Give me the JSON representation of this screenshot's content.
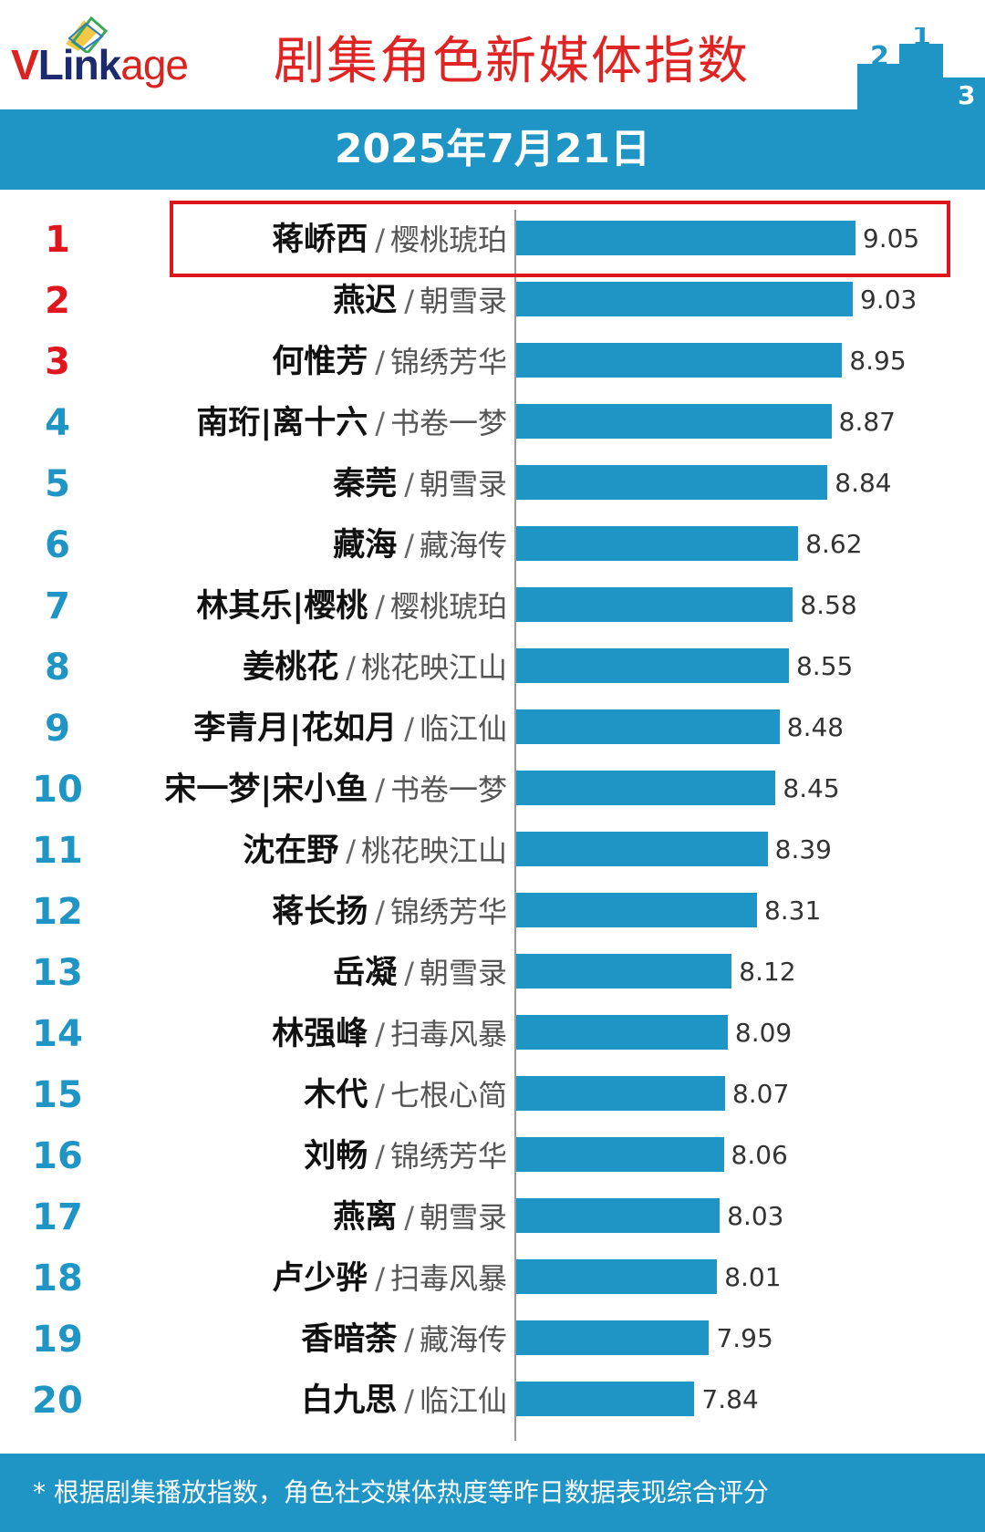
{
  "header": {
    "logo_v": "V",
    "logo_link": "Link",
    "logo_age": "age",
    "title": "剧集角色新媒体指数"
  },
  "date_bar": {
    "text": "2025年7月21日"
  },
  "footer": {
    "text": "* 根据剧集播放指数，角色社交媒体热度等昨日数据表现综合评分"
  },
  "colors": {
    "bar": "#1e95c4",
    "top_rank": "#e0161e",
    "rank": "#1e95c4",
    "highlight_border": "#e0161e"
  },
  "chart_data": {
    "type": "bar",
    "orientation": "horizontal",
    "title": "剧集角色新媒体指数",
    "subtitle": "2025年7月21日",
    "xlim": [
      6.5,
      9.75
    ],
    "highlighted_rank": 1,
    "rows": [
      {
        "rank": "1",
        "name": "蒋峤西",
        "drama": "樱桃琥珀",
        "value": 9.05
      },
      {
        "rank": "2",
        "name": "燕迟",
        "drama": "朝雪录",
        "value": 9.03
      },
      {
        "rank": "3",
        "name": "何惟芳",
        "drama": "锦绣芳华",
        "value": 8.95
      },
      {
        "rank": "4",
        "name": "南珩|离十六",
        "drama": "书卷一梦",
        "value": 8.87
      },
      {
        "rank": "5",
        "name": "秦莞",
        "drama": "朝雪录",
        "value": 8.84
      },
      {
        "rank": "6",
        "name": "藏海",
        "drama": "藏海传",
        "value": 8.62
      },
      {
        "rank": "7",
        "name": "林其乐|樱桃",
        "drama": "樱桃琥珀",
        "value": 8.58
      },
      {
        "rank": "8",
        "name": "姜桃花",
        "drama": "桃花映江山",
        "value": 8.55
      },
      {
        "rank": "9",
        "name": "李青月|花如月",
        "drama": "临江仙",
        "value": 8.48
      },
      {
        "rank": "10",
        "name": "宋一梦|宋小鱼",
        "drama": "书卷一梦",
        "value": 8.45
      },
      {
        "rank": "11",
        "name": "沈在野",
        "drama": "桃花映江山",
        "value": 8.39
      },
      {
        "rank": "12",
        "name": "蒋长扬",
        "drama": "锦绣芳华",
        "value": 8.31
      },
      {
        "rank": "13",
        "name": "岳凝",
        "drama": "朝雪录",
        "value": 8.12
      },
      {
        "rank": "14",
        "name": "林强峰",
        "drama": "扫毒风暴",
        "value": 8.09
      },
      {
        "rank": "15",
        "name": "木代",
        "drama": "七根心简",
        "value": 8.07
      },
      {
        "rank": "16",
        "name": "刘畅",
        "drama": "锦绣芳华",
        "value": 8.06
      },
      {
        "rank": "17",
        "name": "燕离",
        "drama": "朝雪录",
        "value": 8.03
      },
      {
        "rank": "18",
        "name": "卢少骅",
        "drama": "扫毒风暴",
        "value": 8.01
      },
      {
        "rank": "19",
        "name": "香暗荼",
        "drama": "藏海传",
        "value": 7.95
      },
      {
        "rank": "20",
        "name": "白九思",
        "drama": "临江仙",
        "value": 7.84
      }
    ]
  }
}
